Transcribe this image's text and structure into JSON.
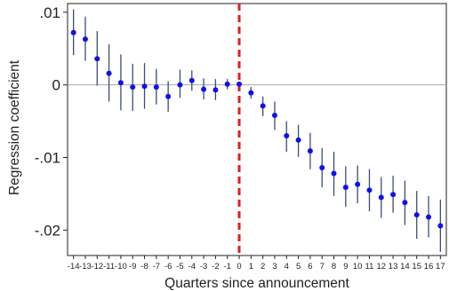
{
  "chart_data": {
    "type": "scatter",
    "xlabel": "Quarters since announcement",
    "ylabel": "Regression coefficient",
    "xlim": [
      -14.5,
      17.5
    ],
    "ylim": [
      -0.0235,
      0.0112
    ],
    "x_ticks": [
      -14,
      -13,
      -12,
      -11,
      -10,
      -9,
      -8,
      -7,
      -6,
      -5,
      -4,
      -3,
      -2,
      -1,
      0,
      1,
      2,
      3,
      4,
      5,
      6,
      7,
      8,
      9,
      10,
      11,
      12,
      13,
      14,
      15,
      16,
      17
    ],
    "x_tick_labels": [
      "-14",
      "-13",
      "-12",
      "-11",
      "-10",
      "-9",
      "-8",
      "-7",
      "-6",
      "-5",
      "-4",
      "-3",
      "-2",
      "-1",
      "0",
      "1",
      "2",
      "3",
      "4",
      "5",
      "6",
      "7",
      "8",
      "9",
      "10",
      "11",
      "12",
      "13",
      "14",
      "15",
      "16",
      "17"
    ],
    "y_ticks": [
      0.01,
      0,
      -0.01,
      -0.02
    ],
    "y_tick_labels": [
      ".01",
      "0",
      "-.01",
      "-.02"
    ],
    "reference_line": {
      "y": 0,
      "color": "#a8a8a8"
    },
    "event_line": {
      "x": 0,
      "color": "#e02020",
      "style": "dashed"
    },
    "colors": {
      "point": "#1010ee",
      "error_bar": "#3a4e7a",
      "frame": "#222222"
    },
    "series": [
      {
        "x": [
          -14,
          -13,
          -12,
          -11,
          -10,
          -9,
          -8,
          -7,
          -6,
          -5,
          -4,
          -3,
          -2,
          -1,
          0,
          1,
          2,
          3,
          4,
          5,
          6,
          7,
          8,
          9,
          10,
          11,
          12,
          13,
          14,
          15,
          16,
          17
        ],
        "values": [
          0.0072,
          0.0063,
          0.0036,
          0.0016,
          0.0003,
          -0.0003,
          -0.0002,
          -0.0003,
          -0.0016,
          0.0,
          0.0006,
          -0.0006,
          -0.0007,
          0.0001,
          0.0001,
          -0.0011,
          -0.0029,
          -0.0042,
          -0.007,
          -0.0076,
          -0.0091,
          -0.0114,
          -0.0122,
          -0.0141,
          -0.0137,
          -0.0145,
          -0.0155,
          -0.0151,
          -0.0162,
          -0.0179,
          -0.0182,
          -0.0194
        ],
        "ci_low": [
          0.0041,
          0.0033,
          -0.0001,
          -0.0023,
          -0.0035,
          -0.0036,
          -0.0033,
          -0.0027,
          -0.0037,
          -0.0018,
          -0.0008,
          -0.002,
          -0.0021,
          -0.0006,
          -0.0001,
          -0.0019,
          -0.0043,
          -0.0062,
          -0.0092,
          -0.0099,
          -0.0116,
          -0.0141,
          -0.0153,
          -0.0168,
          -0.0163,
          -0.0174,
          -0.0183,
          -0.0176,
          -0.0193,
          -0.0212,
          -0.021,
          -0.023
        ],
        "ci_high": [
          0.0104,
          0.0094,
          0.0074,
          0.0056,
          0.0042,
          0.0029,
          0.003,
          0.0022,
          0.0005,
          0.0021,
          0.002,
          0.0009,
          0.0008,
          0.0008,
          0.0003,
          -0.0003,
          -0.0016,
          -0.0023,
          -0.005,
          -0.0055,
          -0.0066,
          -0.0087,
          -0.0092,
          -0.0112,
          -0.0111,
          -0.0116,
          -0.0127,
          -0.0125,
          -0.0132,
          -0.0146,
          -0.0153,
          -0.0158
        ]
      }
    ]
  }
}
